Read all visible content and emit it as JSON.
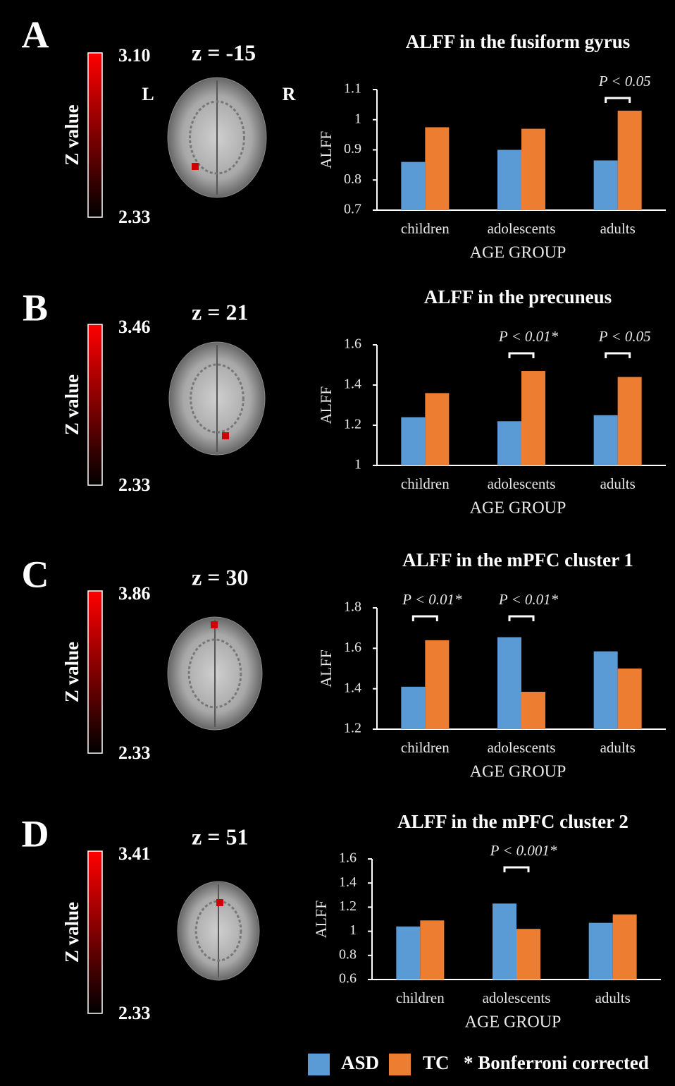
{
  "chart_data": [
    {
      "type": "bar",
      "panel": "A",
      "title": "ALFF in the fusiform gyrus",
      "slice_label": "z = -15",
      "orientation_labels": [
        "L",
        "R"
      ],
      "colorbar": {
        "label": "Z value",
        "max": {
          "value": 3.1,
          "label": "3.10"
        },
        "min": 2.33
      },
      "categories": [
        "children",
        "adolescents",
        "adults"
      ],
      "x_label": "AGE GROUP",
      "y_label": "ALFF",
      "series": [
        {
          "name": "ASD",
          "color": "#5b9bd5",
          "values": [
            0.86,
            0.9,
            0.865
          ]
        },
        {
          "name": "TC",
          "color": "#ed7d31",
          "values": [
            0.975,
            0.97,
            1.03
          ]
        }
      ],
      "ylim": [
        0.7,
        1.1
      ],
      "yticks": [
        0.7,
        0.8,
        0.9,
        1,
        1.1
      ],
      "annotations": [
        {
          "category": "adults",
          "text": "P < 0.05"
        }
      ]
    },
    {
      "type": "bar",
      "panel": "B",
      "title": "ALFF in the precuneus",
      "slice_label": "z = 21",
      "colorbar": {
        "label": "Z value",
        "max": 3.46,
        "min": 2.33
      },
      "categories": [
        "children",
        "adolescents",
        "adults"
      ],
      "x_label": "AGE GROUP",
      "y_label": "ALFF",
      "series": [
        {
          "name": "ASD",
          "color": "#5b9bd5",
          "values": [
            1.24,
            1.22,
            1.25
          ]
        },
        {
          "name": "TC",
          "color": "#ed7d31",
          "values": [
            1.36,
            1.47,
            1.44
          ]
        }
      ],
      "ylim": [
        1,
        1.6
      ],
      "yticks": [
        1,
        1.2,
        1.4,
        1.6
      ],
      "annotations": [
        {
          "category": "adolescents",
          "text": "P < 0.01*"
        },
        {
          "category": "adults",
          "text": "P < 0.05"
        }
      ]
    },
    {
      "type": "bar",
      "panel": "C",
      "title": "ALFF in the mPFC cluster 1",
      "slice_label": "z = 30",
      "colorbar": {
        "label": "Z value",
        "max": 3.86,
        "min": 2.33
      },
      "categories": [
        "children",
        "adolescents",
        "adults"
      ],
      "x_label": "AGE GROUP",
      "y_label": "ALFF",
      "series": [
        {
          "name": "ASD",
          "color": "#5b9bd5",
          "values": [
            1.41,
            1.655,
            1.585
          ]
        },
        {
          "name": "TC",
          "color": "#ed7d31",
          "values": [
            1.64,
            1.385,
            1.5
          ]
        }
      ],
      "ylim": [
        1.2,
        1.8
      ],
      "yticks": [
        1.2,
        1.4,
        1.6,
        1.8
      ],
      "annotations": [
        {
          "category": "children",
          "text": "P < 0.01*"
        },
        {
          "category": "adolescents",
          "text": "P < 0.01*"
        }
      ]
    },
    {
      "type": "bar",
      "panel": "D",
      "title": "ALFF in the mPFC cluster 2",
      "slice_label": "z = 51",
      "colorbar": {
        "label": "Z value",
        "max": 3.41,
        "min": 2.33
      },
      "categories": [
        "children",
        "adolescents",
        "adults"
      ],
      "x_label": "AGE GROUP",
      "y_label": "ALFF",
      "series": [
        {
          "name": "ASD",
          "color": "#5b9bd5",
          "values": [
            1.04,
            1.23,
            1.07
          ]
        },
        {
          "name": "TC",
          "color": "#ed7d31",
          "values": [
            1.09,
            1.02,
            1.14
          ]
        }
      ],
      "ylim": [
        0.6,
        1.6
      ],
      "yticks": [
        0.6,
        0.8,
        1,
        1.2,
        1.4,
        1.6
      ],
      "annotations": [
        {
          "category": "adolescents",
          "text": "P < 0.001*"
        }
      ]
    }
  ],
  "note": "* Bonferroni corrected"
}
